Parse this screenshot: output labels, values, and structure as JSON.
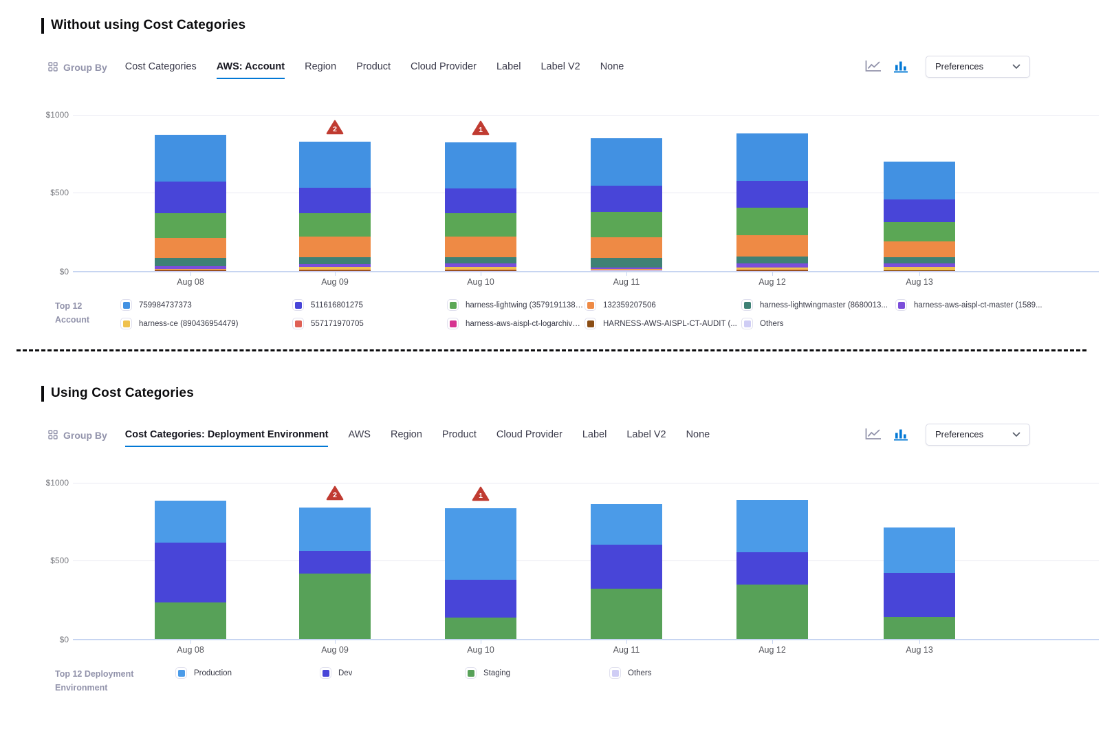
{
  "colors": {
    "accent_blue": "#0278d5",
    "inactive_icon": "#9293ab",
    "anomaly_red": "#c03b31",
    "grid": "#e9e9f2",
    "axis_zero": "#c7d5f1"
  },
  "icons": {
    "group_by": "grid-icon",
    "line_chart_toggle": "line-chart-icon",
    "bar_chart_toggle": "bar-chart-icon",
    "preferences_chevron": "chevron-down-icon",
    "anomaly_badge": "warning-triangle-icon"
  },
  "sections": [
    {
      "title": "Without using Cost Categories",
      "group_by_label": "Group By",
      "tabs": [
        {
          "label": "Cost Categories",
          "active": false
        },
        {
          "label": "AWS: Account",
          "active": true
        },
        {
          "label": "Region",
          "active": false
        },
        {
          "label": "Product",
          "active": false
        },
        {
          "label": "Cloud Provider",
          "active": false
        },
        {
          "label": "Label",
          "active": false
        },
        {
          "label": "Label V2",
          "active": false
        },
        {
          "label": "None",
          "active": false
        }
      ],
      "preferences_label": "Preferences",
      "legend_title_lines": [
        "Top 12",
        "Account"
      ],
      "legend": [
        {
          "label": "759984737373",
          "color": "#4291e2"
        },
        {
          "label": "511616801275",
          "color": "#4845d8"
        },
        {
          "label": "harness-lightwing (357919113896)",
          "color": "#5ba755"
        },
        {
          "label": "132359207506",
          "color": "#ee8a45"
        },
        {
          "label": "harness-lightwingmaster (8680013...",
          "color": "#3e8175"
        },
        {
          "label": "harness-aws-aispl-ct-master (1589...",
          "color": "#7b4eda"
        },
        {
          "label": "harness-ce (890436954479)",
          "color": "#efc14e"
        },
        {
          "label": "557171970705",
          "color": "#df6055"
        },
        {
          "label": "harness-aws-aispl-ct-logarchive (3...",
          "color": "#d63390"
        },
        {
          "label": "HARNESS-AWS-AISPL-CT-AUDIT (...",
          "color": "#8a4d15"
        },
        {
          "label": "Others",
          "color": "#cfcdf5"
        }
      ]
    },
    {
      "title": "Using Cost Categories",
      "group_by_label": "Group By",
      "tabs": [
        {
          "label": "Cost Categories: Deployment Environment",
          "active": true
        },
        {
          "label": "AWS",
          "active": false
        },
        {
          "label": "Region",
          "active": false
        },
        {
          "label": "Product",
          "active": false
        },
        {
          "label": "Cloud Provider",
          "active": false
        },
        {
          "label": "Label",
          "active": false
        },
        {
          "label": "Label V2",
          "active": false
        },
        {
          "label": "None",
          "active": false
        }
      ],
      "preferences_label": "Preferences",
      "legend_title_lines": [
        "Top 12 Deployment",
        "Environment"
      ],
      "legend": [
        {
          "label": "Production",
          "color": "#4b9be8"
        },
        {
          "label": "Dev",
          "color": "#4845d8"
        },
        {
          "label": "Staging",
          "color": "#57a158"
        },
        {
          "label": "Others",
          "color": "#cfcdf5"
        }
      ]
    }
  ],
  "chart_data": [
    {
      "type": "bar",
      "stacked": true,
      "title": "Without using Cost Categories — AWS: Account (Top 12), daily cost in USD",
      "categories": [
        "Aug 08",
        "Aug 09",
        "Aug 10",
        "Aug 11",
        "Aug 12",
        "Aug 13"
      ],
      "xlabel": "",
      "ylabel": "",
      "ylim": [
        0,
        1000
      ],
      "ytick_labels": [
        "$0",
        "$500",
        "$1000"
      ],
      "grid": true,
      "legend_position": "bottom",
      "stack_order": "first series on top",
      "series": [
        {
          "name": "759984737373",
          "color": "#4291e2",
          "values": [
            300,
            296,
            297,
            306,
            304,
            242
          ]
        },
        {
          "name": "511616801275",
          "color": "#4845d8",
          "values": [
            203,
            163,
            156,
            168,
            174,
            143
          ]
        },
        {
          "name": "harness-lightwing (357919113896)",
          "color": "#5ba755",
          "values": [
            159,
            151,
            151,
            162,
            177,
            127
          ]
        },
        {
          "name": "132359207506",
          "color": "#ee8a45",
          "values": [
            128,
            133,
            133,
            134,
            133,
            101
          ]
        },
        {
          "name": "harness-lightwingmaster (8680013...",
          "color": "#3e8175",
          "values": [
            53,
            42,
            40,
            61,
            44,
            37
          ]
        },
        {
          "name": "harness-aws-aispl-ct-master (1589...",
          "color": "#7b4eda",
          "values": [
            19,
            20,
            22,
            9,
            29,
            25
          ]
        },
        {
          "name": "harness-ce (890436954479)",
          "color": "#efc14e",
          "values": [
            5,
            14,
            15,
            5,
            14,
            19
          ]
        },
        {
          "name": "557171970705",
          "color": "#df6055",
          "values": [
            3,
            5,
            4,
            3,
            3,
            2
          ]
        },
        {
          "name": "harness-aws-aispl-ct-logarchive (3...",
          "color": "#d63390",
          "values": [
            1,
            2,
            2,
            1,
            1,
            1
          ]
        },
        {
          "name": "HARNESS-AWS-AISPL-CT-AUDIT (...",
          "color": "#8a4d15",
          "values": [
            1,
            2,
            2,
            1,
            1,
            1
          ]
        },
        {
          "name": "Others",
          "color": "#cfcdf5",
          "values": [
            1,
            1,
            1,
            1,
            1,
            1
          ]
        }
      ],
      "annotations": [
        {
          "category": "Aug 09",
          "category_index": 1,
          "badge": "2",
          "type": "anomaly"
        },
        {
          "category": "Aug 10",
          "category_index": 2,
          "badge": "1",
          "type": "anomaly"
        }
      ]
    },
    {
      "type": "bar",
      "stacked": true,
      "title": "Using Cost Categories — Cost Categories: Deployment Environment (Top 12), daily cost in USD",
      "categories": [
        "Aug 08",
        "Aug 09",
        "Aug 10",
        "Aug 11",
        "Aug 12",
        "Aug 13"
      ],
      "xlabel": "",
      "ylabel": "",
      "ylim": [
        0,
        1000
      ],
      "ytick_labels": [
        "$0",
        "$500",
        "$1000"
      ],
      "grid": true,
      "legend_position": "bottom",
      "stack_order": "first series on top",
      "series": [
        {
          "name": "Production",
          "color": "#4b9be8",
          "values": [
            266,
            277,
            460,
            259,
            336,
            291
          ]
        },
        {
          "name": "Dev",
          "color": "#4845d8",
          "values": [
            386,
            146,
            239,
            283,
            208,
            280
          ]
        },
        {
          "name": "Staging",
          "color": "#57a158",
          "values": [
            231,
            416,
            136,
            318,
            345,
            139
          ]
        },
        {
          "name": "Others",
          "color": "#cfcdf5",
          "values": [
            0,
            0,
            0,
            0,
            0,
            0
          ]
        }
      ],
      "annotations": [
        {
          "category": "Aug 09",
          "category_index": 1,
          "badge": "2",
          "type": "anomaly"
        },
        {
          "category": "Aug 10",
          "category_index": 2,
          "badge": "1",
          "type": "anomaly"
        }
      ]
    }
  ]
}
